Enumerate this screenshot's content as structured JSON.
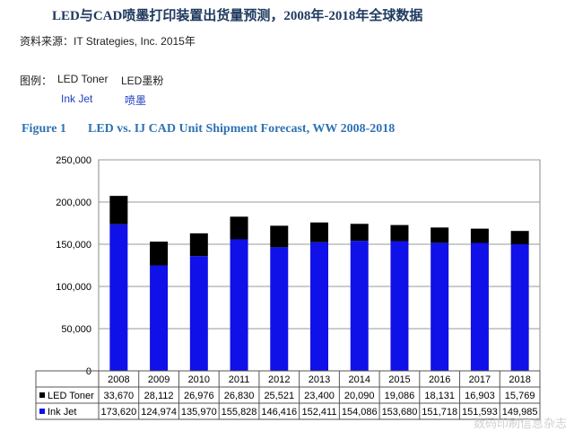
{
  "header": {
    "title": "LED与CAD喷墨打印装置出货量预测，2008年-2018年全球数据",
    "source": "资料来源：IT Strategies, Inc. 2015年"
  },
  "legend_note": {
    "heading": "图例：",
    "items": [
      {
        "en": "LED Toner",
        "cn": "LED墨粉"
      },
      {
        "en": "Ink Jet",
        "cn": "喷墨"
      }
    ]
  },
  "figure": {
    "label": "Figure 1",
    "title": "LED vs. IJ CAD Unit Shipment Forecast, WW 2008-2018"
  },
  "watermark": "数码印刷信息杂志",
  "chart_data": {
    "type": "bar",
    "stacked": true,
    "categories": [
      "2008",
      "2009",
      "2010",
      "2011",
      "2012",
      "2013",
      "2014",
      "2015",
      "2016",
      "2017",
      "2018"
    ],
    "series": [
      {
        "name": "Ink Jet",
        "color": "#1010e8",
        "values": [
          173620,
          124974,
          135970,
          155828,
          146416,
          152411,
          154086,
          153680,
          151718,
          151593,
          149985
        ],
        "labels": [
          "173,620",
          "124,974",
          "135,970",
          "155,828",
          "146,416",
          "152,411",
          "154,086",
          "153,680",
          "151,718",
          "151,593",
          "149,985"
        ]
      },
      {
        "name": "LED Toner",
        "color": "#000000",
        "values": [
          33670,
          28112,
          26976,
          26830,
          25521,
          23400,
          20090,
          19086,
          18131,
          16903,
          15769
        ],
        "labels": [
          "33,670",
          "28,112",
          "26,976",
          "26,830",
          "25,521",
          "23,400",
          "20,090",
          "19,086",
          "18,131",
          "16,903",
          "15,769"
        ]
      }
    ],
    "ylim": [
      0,
      250000
    ],
    "yticks": [
      0,
      50000,
      100000,
      150000,
      200000,
      250000
    ],
    "ytick_labels": [
      "0",
      "50,000",
      "100,000",
      "150,000",
      "200,000",
      "250,000"
    ],
    "grid": true,
    "data_table": true,
    "xlabel": "",
    "ylabel": ""
  }
}
